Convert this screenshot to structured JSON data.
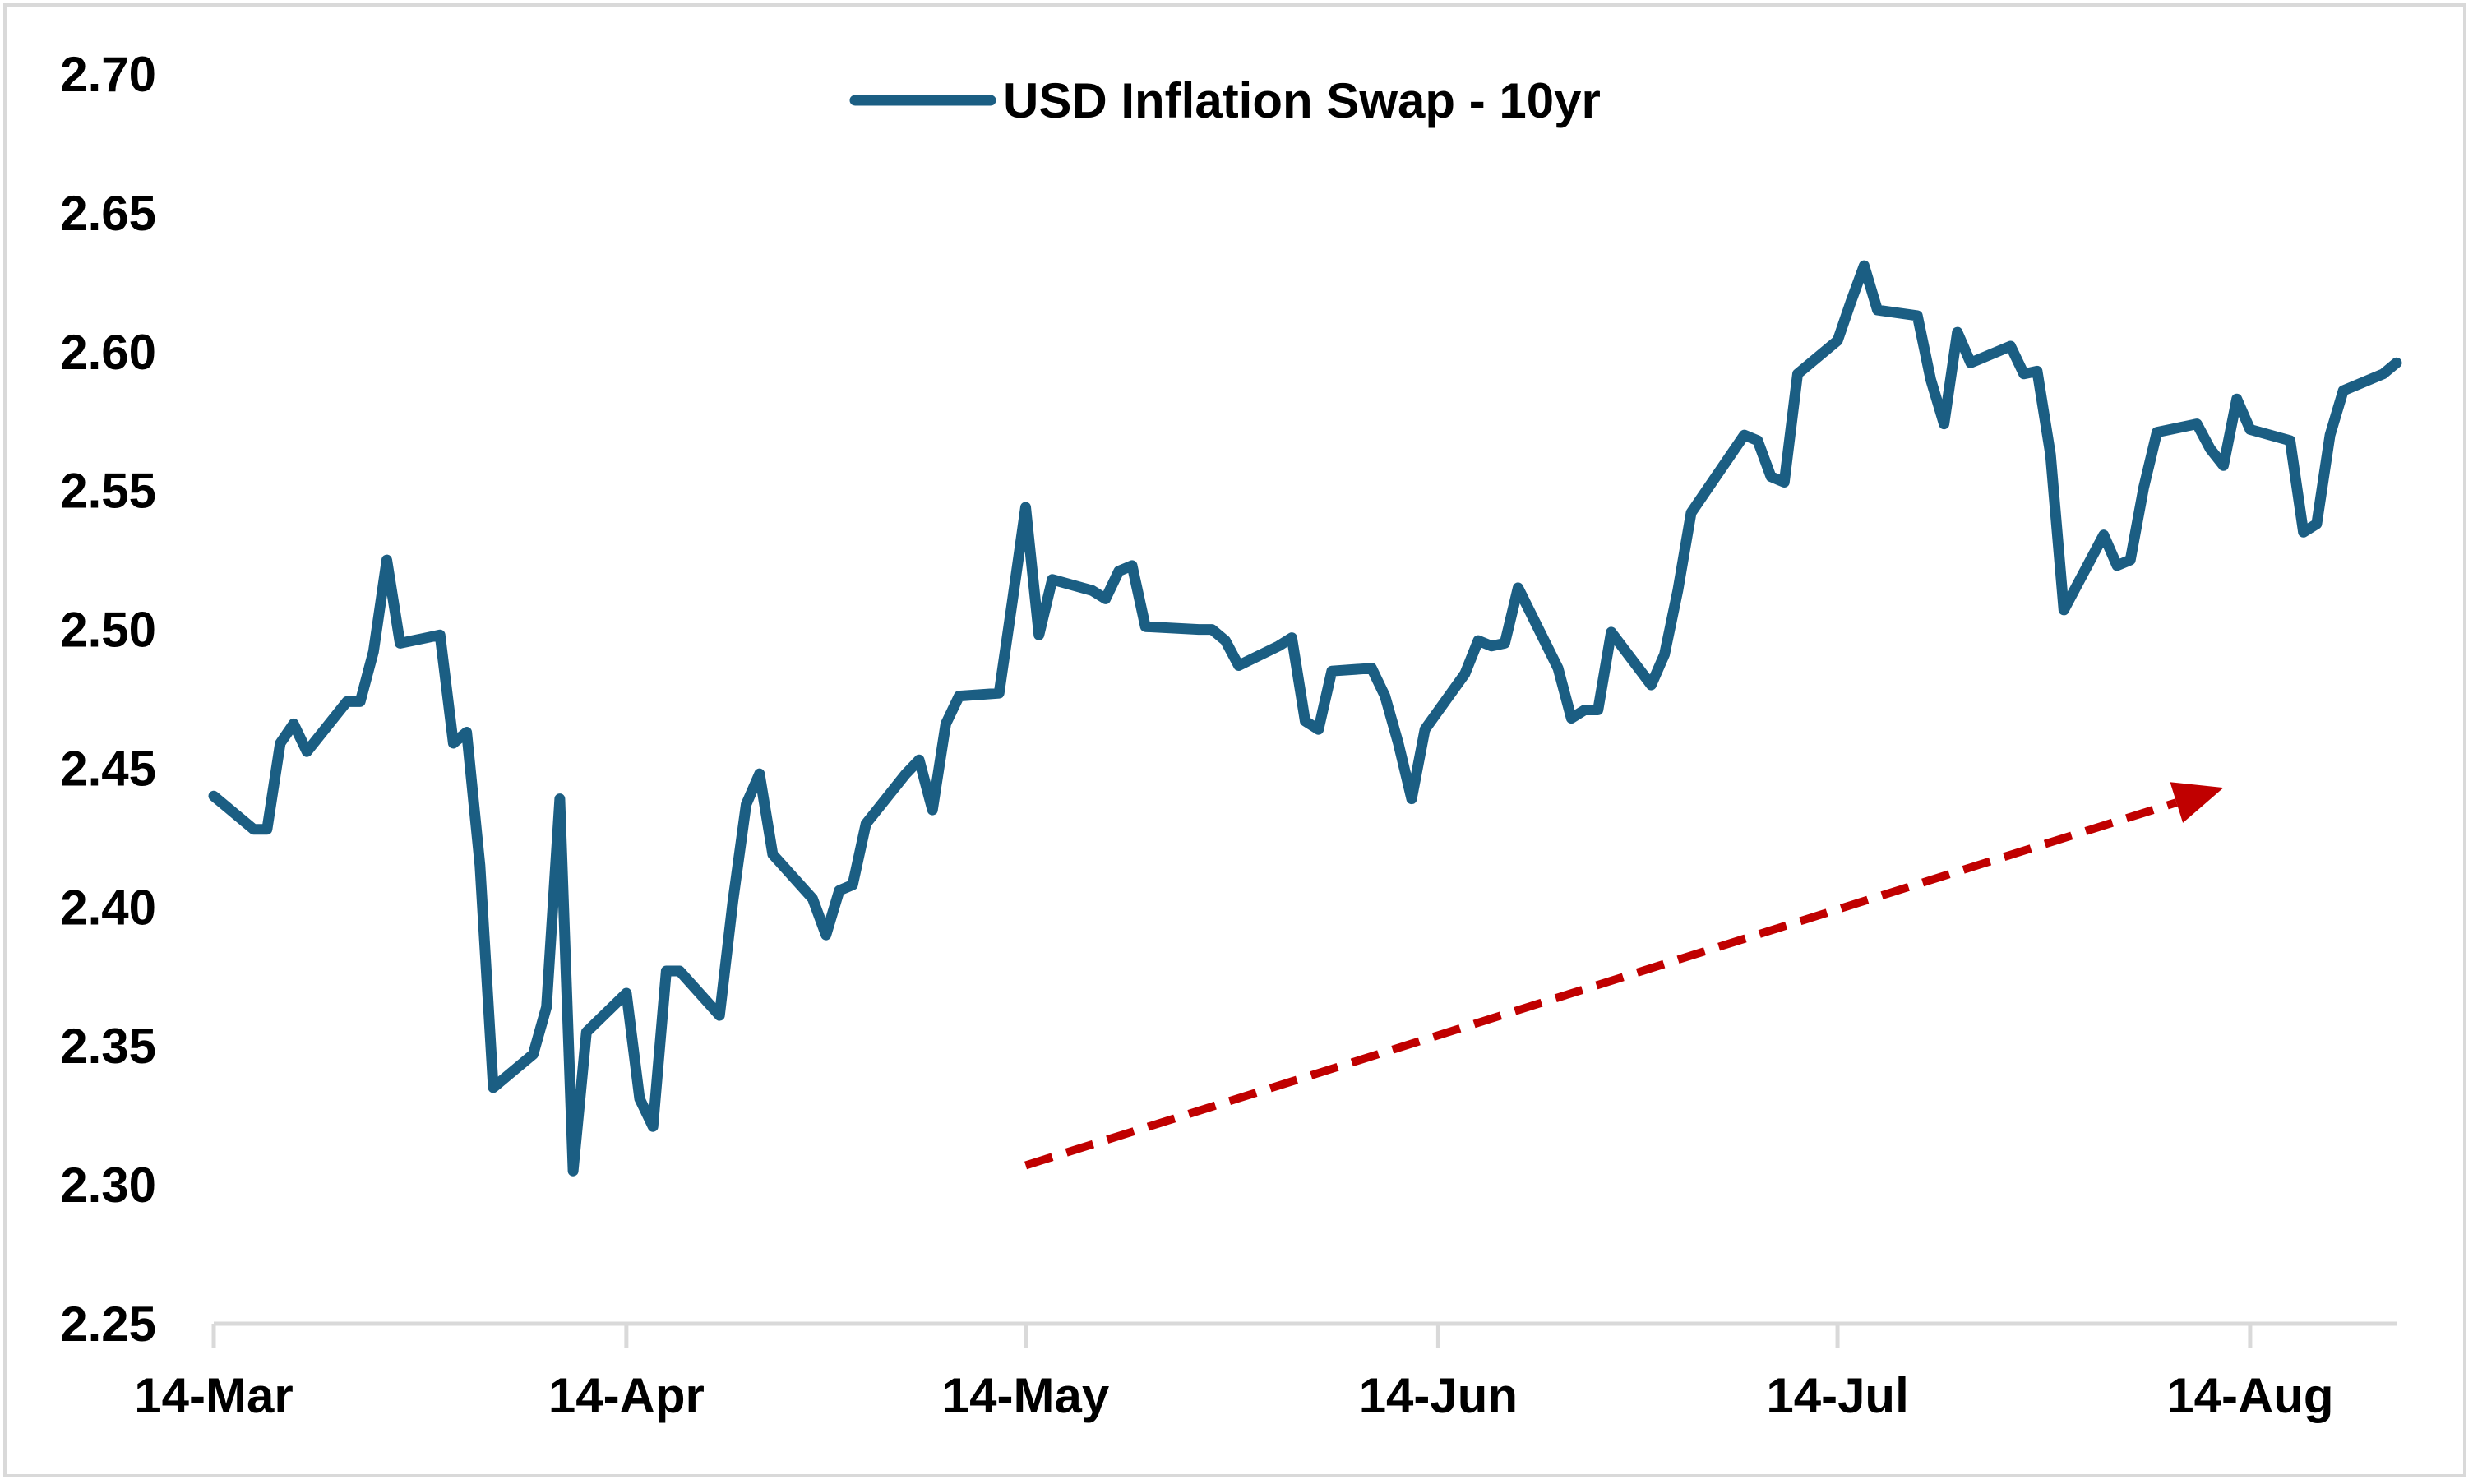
{
  "chart_data": {
    "type": "line",
    "title": "",
    "xlabel": "",
    "ylabel": "",
    "ylim": [
      2.25,
      2.7
    ],
    "y_ticks": [
      "2.25",
      "2.30",
      "2.35",
      "2.40",
      "2.45",
      "2.50",
      "2.55",
      "2.60",
      "2.65",
      "2.70"
    ],
    "x_ticks": [
      {
        "date": "2024-03-14",
        "label": "14-Mar"
      },
      {
        "date": "2024-04-14",
        "label": "14-Apr"
      },
      {
        "date": "2024-05-14",
        "label": "14-May"
      },
      {
        "date": "2024-06-14",
        "label": "14-Jun"
      },
      {
        "date": "2024-07-14",
        "label": "14-Jul"
      },
      {
        "date": "2024-08-14",
        "label": "14-Aug"
      }
    ],
    "grid": false,
    "legend": {
      "position": "top-center"
    },
    "series": [
      {
        "name": "USD Inflation Swap - 10yr",
        "color": "#1b5e83",
        "points": [
          [
            "2024-03-14",
            2.44
          ],
          [
            "2024-03-17",
            2.428
          ],
          [
            "2024-03-18",
            2.428
          ],
          [
            "2024-03-19",
            2.459
          ],
          [
            "2024-03-20",
            2.466
          ],
          [
            "2024-03-21",
            2.456
          ],
          [
            "2024-03-24",
            2.474
          ],
          [
            "2024-03-25",
            2.474
          ],
          [
            "2024-03-26",
            2.492
          ],
          [
            "2024-03-27",
            2.525
          ],
          [
            "2024-03-28",
            2.495
          ],
          [
            "2024-03-31",
            2.498
          ],
          [
            "2024-04-01",
            2.459
          ],
          [
            "2024-04-02",
            2.463
          ],
          [
            "2024-04-03",
            2.415
          ],
          [
            "2024-04-04",
            2.335
          ],
          [
            "2024-04-07",
            2.347
          ],
          [
            "2024-04-08",
            2.364
          ],
          [
            "2024-04-09",
            2.439
          ],
          [
            "2024-04-10",
            2.305
          ],
          [
            "2024-04-11",
            2.355
          ],
          [
            "2024-04-14",
            2.369
          ],
          [
            "2024-04-15",
            2.331
          ],
          [
            "2024-04-16",
            2.321
          ],
          [
            "2024-04-17",
            2.377
          ],
          [
            "2024-04-18",
            2.377
          ],
          [
            "2024-04-21",
            2.361
          ],
          [
            "2024-04-22",
            2.402
          ],
          [
            "2024-04-23",
            2.437
          ],
          [
            "2024-04-24",
            2.448
          ],
          [
            "2024-04-25",
            2.419
          ],
          [
            "2024-04-28",
            2.403
          ],
          [
            "2024-04-29",
            2.39
          ],
          [
            "2024-04-30",
            2.406
          ],
          [
            "2024-05-01",
            2.408
          ],
          [
            "2024-05-02",
            2.43
          ],
          [
            "2024-05-05",
            2.448
          ],
          [
            "2024-05-06",
            2.453
          ],
          [
            "2024-05-07",
            2.435
          ],
          [
            "2024-05-08",
            2.466
          ],
          [
            "2024-05-09",
            2.476
          ],
          [
            "2024-05-12",
            2.477
          ],
          [
            "2024-05-13",
            2.51
          ],
          [
            "2024-05-14",
            2.544
          ],
          [
            "2024-05-15",
            2.498
          ],
          [
            "2024-05-16",
            2.518
          ],
          [
            "2024-05-19",
            2.514
          ],
          [
            "2024-05-20",
            2.511
          ],
          [
            "2024-05-21",
            2.521
          ],
          [
            "2024-05-22",
            2.523
          ],
          [
            "2024-05-23",
            2.501
          ],
          [
            "2024-05-27",
            2.5
          ],
          [
            "2024-05-28",
            2.5
          ],
          [
            "2024-05-29",
            2.496
          ],
          [
            "2024-05-30",
            2.487
          ],
          [
            "2024-06-02",
            2.494
          ],
          [
            "2024-06-03",
            2.497
          ],
          [
            "2024-06-04",
            2.467
          ],
          [
            "2024-06-05",
            2.464
          ],
          [
            "2024-06-06",
            2.485
          ],
          [
            "2024-06-09",
            2.486
          ],
          [
            "2024-06-10",
            2.476
          ],
          [
            "2024-06-11",
            2.459
          ],
          [
            "2024-06-12",
            2.439
          ],
          [
            "2024-06-13",
            2.464
          ],
          [
            "2024-06-16",
            2.484
          ],
          [
            "2024-06-17",
            2.496
          ],
          [
            "2024-06-18",
            2.494
          ],
          [
            "2024-06-19",
            2.495
          ],
          [
            "2024-06-20",
            2.515
          ],
          [
            "2024-06-23",
            2.486
          ],
          [
            "2024-06-24",
            2.468
          ],
          [
            "2024-06-25",
            2.471
          ],
          [
            "2024-06-26",
            2.471
          ],
          [
            "2024-06-27",
            2.499
          ],
          [
            "2024-06-30",
            2.48
          ],
          [
            "2024-07-01",
            2.491
          ],
          [
            "2024-07-02",
            2.514
          ],
          [
            "2024-07-03",
            2.542
          ],
          [
            "2024-07-07",
            2.57
          ],
          [
            "2024-07-08",
            2.568
          ],
          [
            "2024-07-09",
            2.555
          ],
          [
            "2024-07-10",
            2.553
          ],
          [
            "2024-07-11",
            2.592
          ],
          [
            "2024-07-14",
            2.604
          ],
          [
            "2024-07-15",
            2.618
          ],
          [
            "2024-07-16",
            2.631
          ],
          [
            "2024-07-17",
            2.615
          ],
          [
            "2024-07-20",
            2.613
          ],
          [
            "2024-07-21",
            2.59
          ],
          [
            "2024-07-22",
            2.574
          ],
          [
            "2024-07-23",
            2.607
          ],
          [
            "2024-07-24",
            2.596
          ],
          [
            "2024-07-27",
            2.602
          ],
          [
            "2024-07-28",
            2.592
          ],
          [
            "2024-07-29",
            2.593
          ],
          [
            "2024-07-30",
            2.563
          ],
          [
            "2024-07-31",
            2.507
          ],
          [
            "2024-08-03",
            2.534
          ],
          [
            "2024-08-04",
            2.523
          ],
          [
            "2024-08-05",
            2.525
          ],
          [
            "2024-08-06",
            2.551
          ],
          [
            "2024-08-07",
            2.571
          ],
          [
            "2024-08-10",
            2.574
          ],
          [
            "2024-08-11",
            2.565
          ],
          [
            "2024-08-12",
            2.559
          ],
          [
            "2024-08-13",
            2.583
          ],
          [
            "2024-08-14",
            2.572
          ],
          [
            "2024-08-17",
            2.568
          ],
          [
            "2024-08-18",
            2.535
          ],
          [
            "2024-08-19",
            2.538
          ],
          [
            "2024-08-20",
            2.57
          ],
          [
            "2024-08-21",
            2.586
          ],
          [
            "2024-08-24",
            2.592
          ],
          [
            "2024-08-25",
            2.596
          ]
        ]
      }
    ],
    "annotations": [
      {
        "type": "dashed-arrow",
        "color": "#c00000",
        "from": [
          "2024-05-14",
          2.307
        ],
        "to": [
          "2024-08-12",
          2.443
        ]
      }
    ]
  }
}
